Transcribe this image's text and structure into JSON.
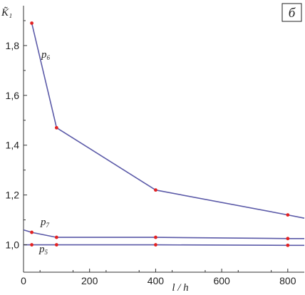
{
  "chart_data": {
    "type": "line",
    "panel_label": "б",
    "ylabel": "K̃₁",
    "xlabel": "l / h",
    "xlim": [
      0,
      850
    ],
    "ylim": [
      0.89,
      1.96
    ],
    "xticks": [
      0,
      200,
      400,
      600,
      800
    ],
    "yticks": [
      1.0,
      1.2,
      1.4,
      1.6,
      1.8
    ],
    "ytick_labels": [
      "1,0",
      "1,2",
      "1,4",
      "1,6",
      "1,8"
    ],
    "grid": false,
    "colors": {
      "line": "#5b5aa8",
      "marker": "#e32222",
      "axis": "#333333"
    },
    "series": [
      {
        "name": "p6",
        "label_base": "p",
        "label_sub": "6",
        "x": [
          25,
          100,
          400,
          800,
          850
        ],
        "y": [
          1.89,
          1.47,
          1.22,
          1.12,
          1.107
        ],
        "markers": [
          true,
          true,
          true,
          true,
          false
        ]
      },
      {
        "name": "p7",
        "label_base": "p",
        "label_sub": "7",
        "x": [
          0,
          25,
          100,
          400,
          800,
          850
        ],
        "y": [
          1.06,
          1.05,
          1.03,
          1.03,
          1.025,
          1.025
        ],
        "markers": [
          false,
          true,
          true,
          true,
          true,
          false
        ]
      },
      {
        "name": "p5",
        "label_base": "p",
        "label_sub": "5",
        "x": [
          0,
          25,
          100,
          400,
          800,
          850
        ],
        "y": [
          1.0,
          1.0,
          1.0,
          1.0,
          0.998,
          0.998
        ],
        "markers": [
          false,
          true,
          true,
          true,
          true,
          false
        ]
      }
    ]
  }
}
